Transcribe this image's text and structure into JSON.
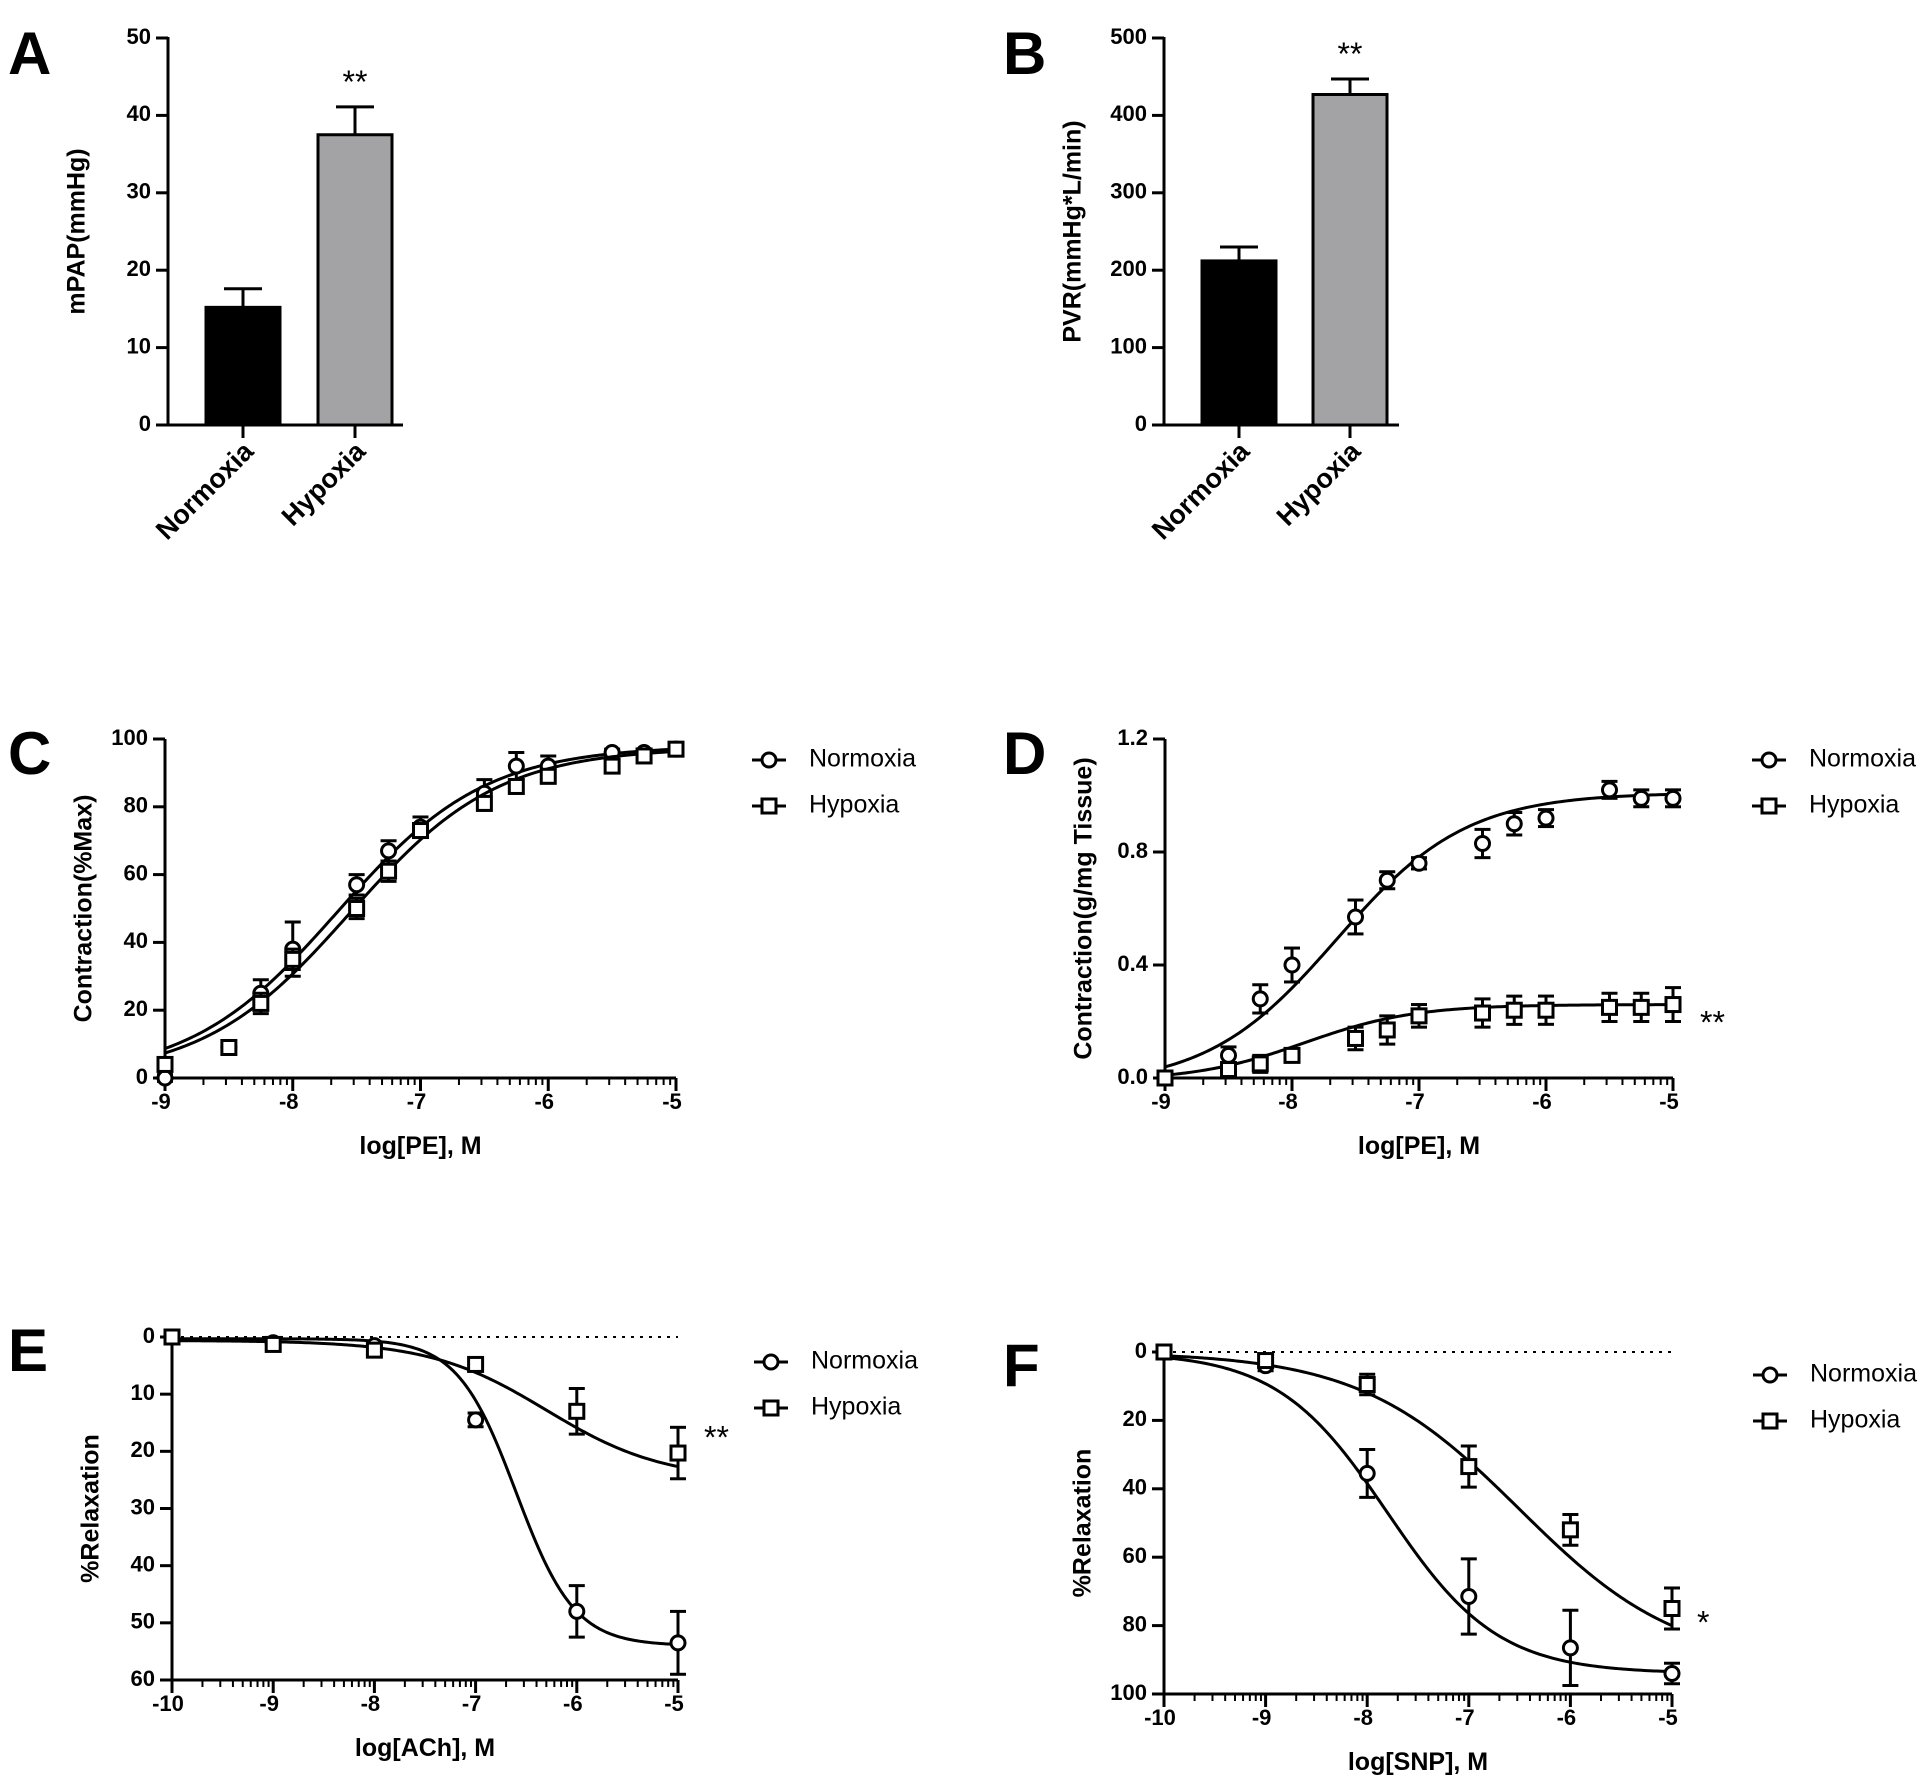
{
  "chart_data": [
    {
      "panel": "A",
      "type": "bar",
      "categories": [
        "Normoxia",
        "Hypoxia"
      ],
      "values": [
        15.2,
        37.5
      ],
      "errors": [
        2.4,
        3.6
      ],
      "colors": [
        "#000000",
        "#a3a3a6"
      ],
      "ylabel": "mPAP(mmHg)",
      "ylim": [
        0,
        50
      ],
      "yticks": [
        0,
        10,
        20,
        30,
        40,
        50
      ],
      "significance": [
        "",
        "**"
      ]
    },
    {
      "panel": "B",
      "type": "bar",
      "categories": [
        "Normoxia",
        "Hypoxia"
      ],
      "values": [
        212,
        427
      ],
      "errors": [
        18,
        20
      ],
      "colors": [
        "#000000",
        "#a3a3a6"
      ],
      "ylabel": "PVR(mmHg*L/min)",
      "ylim": [
        0,
        500
      ],
      "yticks": [
        0,
        100,
        200,
        300,
        400,
        500
      ],
      "significance": [
        "",
        "**"
      ]
    },
    {
      "panel": "C",
      "type": "scatter",
      "xlabel": "log[PE], M",
      "ylabel": "Contraction(%Max)",
      "xlim": [
        -9,
        -5
      ],
      "ylim": [
        0,
        100
      ],
      "xticks": [
        -9,
        -8,
        -7,
        -6,
        -5
      ],
      "yticks": [
        0,
        20,
        40,
        60,
        80,
        100
      ],
      "legend": "right",
      "series": [
        {
          "name": "Normoxia",
          "marker": "circle",
          "x": [
            -9,
            -8.5,
            -8.25,
            -8,
            -7.5,
            -7.25,
            -7,
            -6.5,
            -6.25,
            -6,
            -5.5,
            -5.25,
            -5
          ],
          "y": [
            0,
            9,
            25,
            38,
            57,
            67,
            74,
            84,
            92,
            92,
            96,
            96,
            97
          ],
          "err": [
            1,
            2,
            4,
            8,
            3,
            3,
            3,
            4,
            4,
            3,
            1,
            1,
            1
          ],
          "fit": {
            "bottom": 0,
            "top": 98,
            "logEC50": -7.65,
            "hill": 0.75
          }
        },
        {
          "name": "Hypoxia",
          "marker": "square",
          "x": [
            -9,
            -8.5,
            -8.25,
            -8,
            -7.5,
            -7.25,
            -7,
            -6.5,
            -6.25,
            -6,
            -5.5,
            -5.25,
            -5
          ],
          "y": [
            4,
            9,
            22,
            35,
            50,
            61,
            73,
            81,
            86,
            89,
            92,
            95,
            97
          ],
          "err": [
            1,
            2,
            3,
            3,
            3,
            3,
            2,
            2,
            2,
            2,
            1,
            1,
            1
          ],
          "fit": {
            "bottom": 0,
            "top": 97.5,
            "logEC50": -7.55,
            "hill": 0.75
          }
        }
      ]
    },
    {
      "panel": "D",
      "type": "scatter",
      "xlabel": "log[PE], M",
      "ylabel": "Contraction(g/mg Tissue)",
      "xlim": [
        -9,
        -5
      ],
      "ylim": [
        0,
        1.2
      ],
      "xticks": [
        -9,
        -8,
        -7,
        -6,
        -5
      ],
      "yticks": [
        0,
        0.4,
        0.8,
        1.2
      ],
      "ytick_labels": [
        "0.0",
        "0.4",
        "0.8",
        "1.2"
      ],
      "legend": "right",
      "significance": "**",
      "series": [
        {
          "name": "Normoxia",
          "marker": "circle",
          "x": [
            -8.5,
            -8.25,
            -8,
            -7.5,
            -7.25,
            -7,
            -6.5,
            -6.25,
            -6,
            -5.5,
            -5.25,
            -5
          ],
          "y": [
            0.08,
            0.28,
            0.4,
            0.57,
            0.7,
            0.76,
            0.83,
            0.9,
            0.92,
            1.02,
            0.99,
            0.99
          ],
          "err": [
            0.03,
            0.05,
            0.06,
            0.06,
            0.03,
            0.02,
            0.05,
            0.04,
            0.03,
            0.03,
            0.03,
            0.03
          ],
          "fit": {
            "bottom": -0.03,
            "top": 1.01,
            "logEC50": -7.65,
            "hill": 0.85
          }
        },
        {
          "name": "Hypoxia",
          "marker": "square",
          "x": [
            -9,
            -8.5,
            -8.25,
            -8,
            -7.5,
            -7.25,
            -7,
            -6.5,
            -6.25,
            -6,
            -5.5,
            -5.25,
            -5
          ],
          "y": [
            0,
            0.03,
            0.05,
            0.08,
            0.14,
            0.17,
            0.22,
            0.23,
            0.24,
            0.24,
            0.25,
            0.25,
            0.26
          ],
          "err": [
            0.01,
            0.02,
            0.03,
            0.02,
            0.04,
            0.05,
            0.04,
            0.05,
            0.05,
            0.05,
            0.05,
            0.05,
            0.06
          ],
          "fit": {
            "bottom": -0.01,
            "top": 0.26,
            "logEC50": -7.9,
            "hill": 1.0
          }
        }
      ]
    },
    {
      "panel": "E",
      "type": "scatter",
      "xlabel": "log[ACh], M",
      "ylabel": "%Relaxation",
      "xlim": [
        -10,
        -5
      ],
      "ylim": [
        0,
        60
      ],
      "y_inverted": true,
      "xticks": [
        -10,
        -9,
        -8,
        -7,
        -6,
        -5
      ],
      "yticks": [
        0,
        10,
        20,
        30,
        40,
        50,
        60
      ],
      "legend": "right",
      "significance": "**",
      "series": [
        {
          "name": "Normoxia",
          "marker": "circle",
          "x": [
            -10,
            -9,
            -8,
            -7,
            -6,
            -5
          ],
          "y": [
            0,
            1,
            1.5,
            14.5,
            48,
            53.5
          ],
          "err": [
            0.5,
            0.5,
            0.5,
            1.2,
            4.5,
            5.5
          ],
          "fit": {
            "bottom": 0.3,
            "top": 54,
            "logEC50": -6.6,
            "hill": 1.5
          }
        },
        {
          "name": "Hypoxia",
          "marker": "square",
          "x": [
            -10,
            -9,
            -8,
            -7,
            -6,
            -5
          ],
          "y": [
            0,
            1.3,
            2.3,
            4.8,
            13,
            20.3
          ],
          "err": [
            0.5,
            0.5,
            0.5,
            0.8,
            4,
            4.5
          ],
          "fit": {
            "bottom": 0.6,
            "top": 25,
            "logEC50": -6.3,
            "hill": 0.75
          }
        }
      ]
    },
    {
      "panel": "F",
      "type": "scatter",
      "xlabel": "log[SNP], M",
      "ylabel": "%Relaxation",
      "xlim": [
        -10,
        -5
      ],
      "ylim": [
        0,
        100
      ],
      "y_inverted": true,
      "xticks": [
        -10,
        -9,
        -8,
        -7,
        -6,
        -5
      ],
      "yticks": [
        0,
        20,
        40,
        60,
        80,
        100
      ],
      "legend": "right",
      "significance": "*",
      "series": [
        {
          "name": "Normoxia",
          "marker": "circle",
          "x": [
            -10,
            -9,
            -8,
            -7,
            -6,
            -5
          ],
          "y": [
            0,
            4,
            35.5,
            71.5,
            86.5,
            94
          ],
          "err": [
            1,
            1.5,
            7,
            11,
            11,
            3
          ],
          "fit": {
            "bottom": 0,
            "top": 94,
            "logEC50": -7.8,
            "hill": 0.8
          }
        },
        {
          "name": "Hypoxia",
          "marker": "square",
          "x": [
            -10,
            -9,
            -8,
            -7,
            -6,
            -5
          ],
          "y": [
            0,
            2.5,
            9.5,
            33.5,
            52,
            75
          ],
          "err": [
            1,
            1.5,
            3,
            6,
            4.5,
            6
          ],
          "fit": {
            "bottom": 0,
            "top": 92,
            "logEC50": -6.5,
            "hill": 0.55
          }
        }
      ]
    }
  ]
}
